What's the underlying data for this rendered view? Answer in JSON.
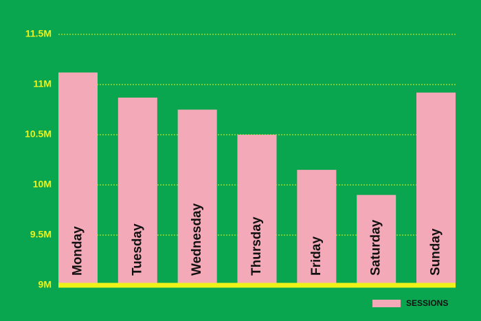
{
  "chart_data": {
    "type": "bar",
    "categories": [
      "Monday",
      "Tuesday",
      "Wednesday",
      "Thursday",
      "Friday",
      "Saturday",
      "Sunday"
    ],
    "series": [
      {
        "name": "SESSIONS",
        "color": "#f4a9b8",
        "values": [
          11120000,
          10870000,
          10750000,
          10500000,
          10150000,
          9900000,
          10920000
        ]
      }
    ],
    "ylim": [
      9000000,
      11500000
    ],
    "yticks": [
      {
        "value": 9000000,
        "label": "9M"
      },
      {
        "value": 9500000,
        "label": "9.5M"
      },
      {
        "value": 10000000,
        "label": "10M"
      },
      {
        "value": 10500000,
        "label": "10.5M"
      },
      {
        "value": 11000000,
        "label": "11M"
      },
      {
        "value": 11500000,
        "label": "11.5M"
      }
    ],
    "grid": true,
    "legend": "lower-right"
  }
}
